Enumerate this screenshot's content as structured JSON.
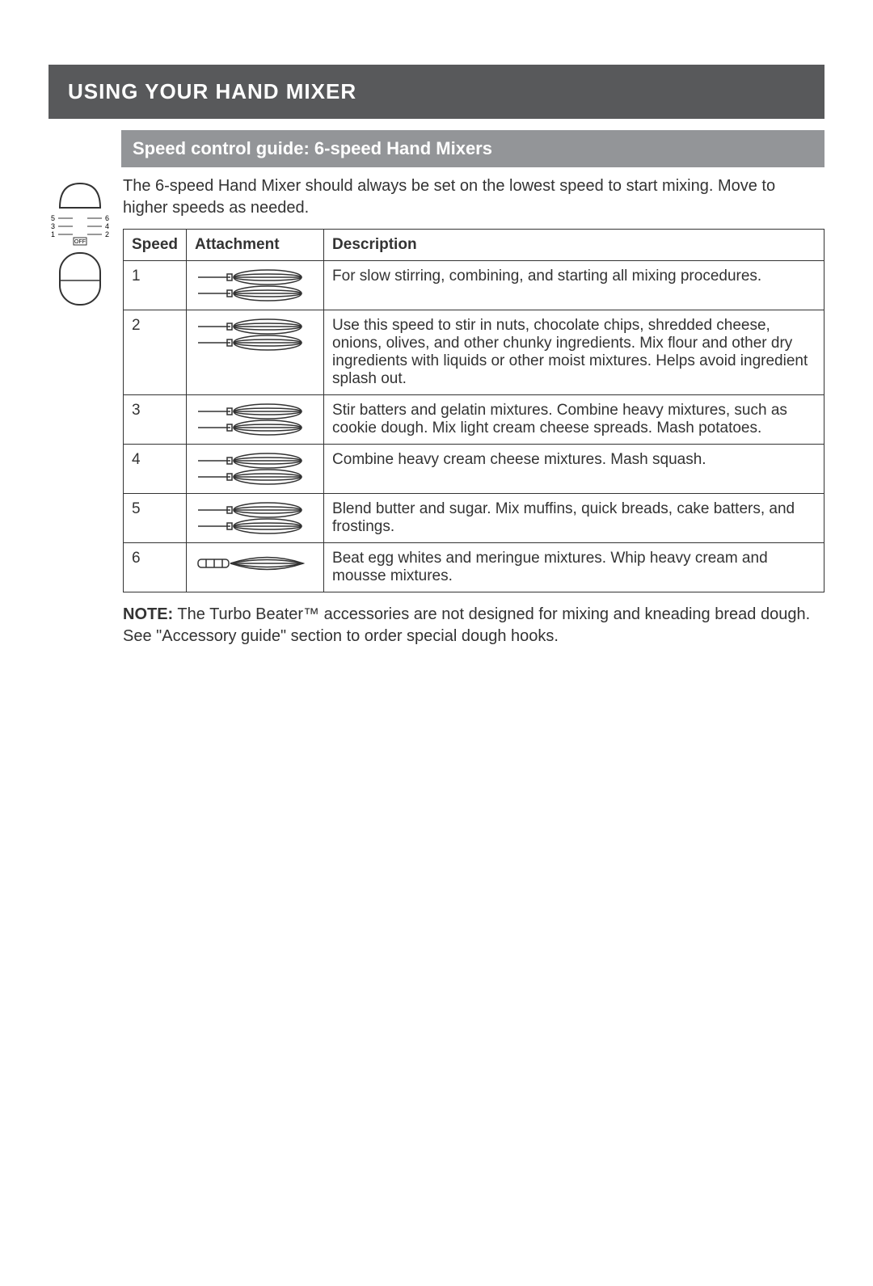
{
  "section_title": "USING YOUR HAND MIXER",
  "sub_title": "Speed control guide: 6-speed Hand Mixers",
  "intro": "The 6-speed Hand Mixer should always be set on the lowest speed to start mixing. Move to higher speeds as needed.",
  "table": {
    "headers": {
      "speed": "Speed",
      "attachment": "Attachment",
      "description": "Description"
    },
    "rows": [
      {
        "speed": "1",
        "attachment_type": "beater",
        "description": "For slow stirring, combining, and starting all mixing procedures."
      },
      {
        "speed": "2",
        "attachment_type": "beater",
        "description": "Use this speed to stir in nuts, chocolate chips, shredded cheese, onions, olives, and other chunky ingredients. Mix flour and other dry ingredients with liquids or other moist mixtures. Helps avoid ingredient splash out."
      },
      {
        "speed": "3",
        "attachment_type": "beater",
        "description": "Stir batters and gelatin mixtures. Combine heavy mixtures, such as cookie dough. Mix light cream cheese spreads. Mash potatoes."
      },
      {
        "speed": "4",
        "attachment_type": "beater",
        "description": "Combine heavy cream cheese mixtures. Mash squash."
      },
      {
        "speed": "5",
        "attachment_type": "beater",
        "description": "Blend butter and sugar. Mix muffins, quick breads, cake batters, and frostings."
      },
      {
        "speed": "6",
        "attachment_type": "whisk",
        "description": "Beat egg whites and meringue mixtures. Whip heavy cream and mousse mixtures."
      }
    ]
  },
  "note": {
    "label": "NOTE:",
    "text": " The Turbo Beater™ accessories are not designed for mixing and kneading bread dough. See \"Accessory guide\" section to order special dough hooks."
  },
  "illustration": {
    "speed_labels": [
      "5",
      "3",
      "1",
      "6",
      "4",
      "2",
      "OFF"
    ]
  },
  "colors": {
    "header_bg": "#58595b",
    "subheader_bg": "#939598",
    "text": "#333333",
    "border": "#333333",
    "white": "#ffffff"
  },
  "typography": {
    "body_fontsize": 20,
    "header_fontsize": 26,
    "subheader_fontsize": 22,
    "table_fontsize": 19
  }
}
